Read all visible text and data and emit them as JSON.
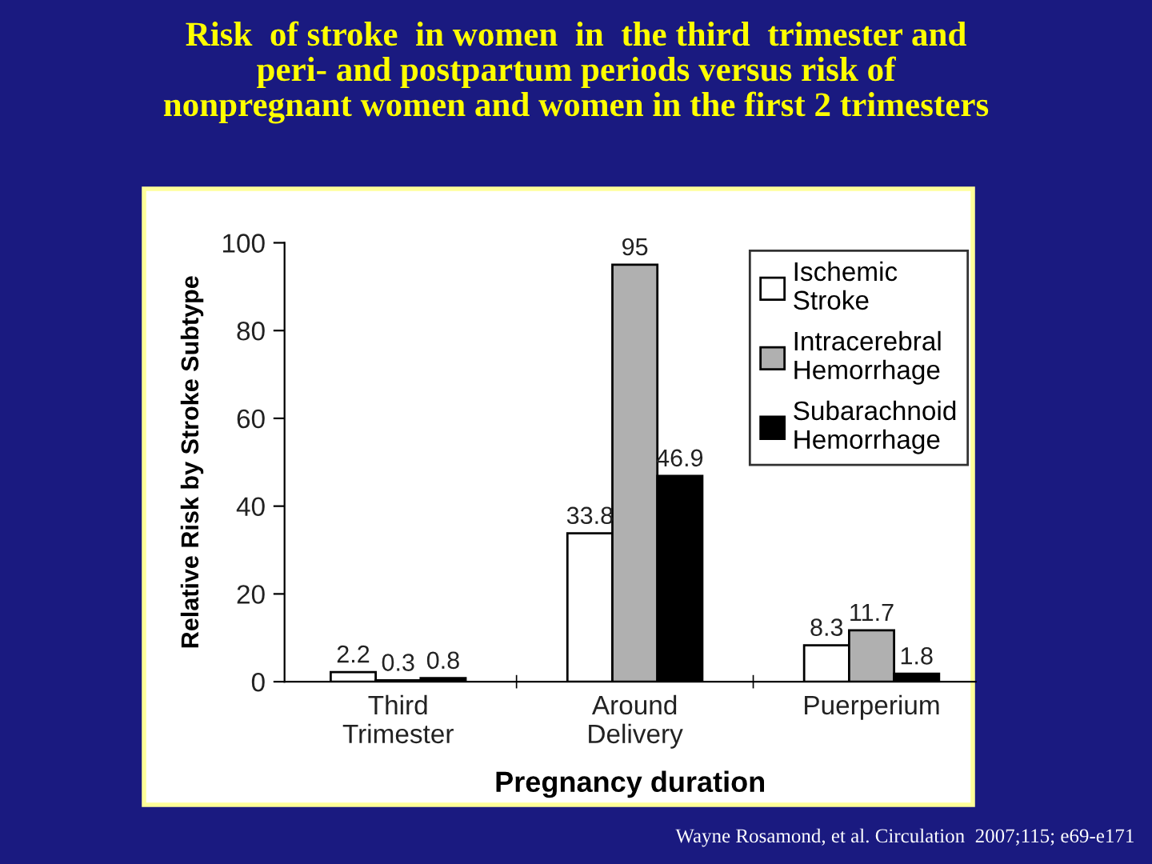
{
  "chart_data": {
    "type": "bar",
    "title": "Risk  of stroke  in women  in  the third  trimester and\nperi- and postpartum periods versus risk of\nnonpregnant women and women in the first 2 trimesters",
    "xlabel": "Pregnancy duration",
    "ylabel": "Relative Risk by Stroke Subtype",
    "categories": [
      "Third\nTrimester",
      "Around\nDelivery",
      "Puerperium"
    ],
    "series": [
      {
        "name": "Ischemic\nStroke",
        "color": "#ffffff",
        "values": [
          2.2,
          33.8,
          8.3
        ]
      },
      {
        "name": "Intracerebral\nHemorrhage",
        "color": "#b0b0b0",
        "values": [
          0.3,
          95,
          11.7
        ]
      },
      {
        "name": "Subarachnoid\nHemorrhage",
        "color": "#000000",
        "values": [
          0.8,
          46.9,
          1.8
        ]
      }
    ],
    "ylim": [
      0,
      100
    ],
    "yticks": [
      0,
      20,
      40,
      60,
      80,
      100
    ],
    "data_labels": true,
    "legend": "top right",
    "grid": false,
    "annotations": [
      "Wayne Rosamond, et al. Circulation  2007;115; e69-e171"
    ]
  }
}
